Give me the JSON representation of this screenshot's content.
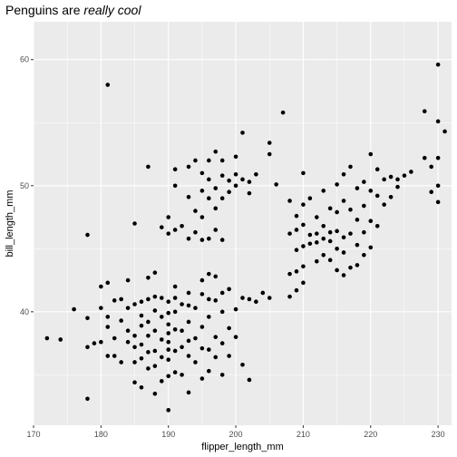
{
  "chart_data": {
    "type": "scatter",
    "title": "Penguins are ",
    "title_emphasis": "really cool",
    "xlabel": "flipper_length_mm",
    "ylabel": "bill_length_mm",
    "xlim": [
      170,
      232
    ],
    "ylim": [
      31,
      63
    ],
    "x_ticks": [
      170,
      180,
      190,
      200,
      210,
      220,
      230
    ],
    "x_tick_labels": [
      "170",
      "180",
      "190",
      "200",
      "210",
      "220",
      "230"
    ],
    "y_ticks": [
      40,
      50,
      60
    ],
    "y_tick_labels": [
      "40",
      "50",
      "60"
    ],
    "grid": true,
    "panel_color": "#ebebeb",
    "point_color": "#000000",
    "points": [
      [
        172,
        37.9
      ],
      [
        174,
        37.8
      ],
      [
        176,
        40.2
      ],
      [
        178,
        33.1
      ],
      [
        178,
        37.2
      ],
      [
        178,
        39.5
      ],
      [
        178,
        46.1
      ],
      [
        179,
        37.5
      ],
      [
        180,
        37.6
      ],
      [
        180,
        40.3
      ],
      [
        180,
        42.0
      ],
      [
        181,
        36.5
      ],
      [
        181,
        38.8
      ],
      [
        181,
        39.6
      ],
      [
        181,
        42.3
      ],
      [
        181,
        58.0
      ],
      [
        182,
        36.5
      ],
      [
        182,
        37.9
      ],
      [
        182,
        40.9
      ],
      [
        183,
        36.0
      ],
      [
        183,
        39.3
      ],
      [
        183,
        41.0
      ],
      [
        184,
        37.6
      ],
      [
        184,
        38.5
      ],
      [
        184,
        40.3
      ],
      [
        184,
        42.5
      ],
      [
        185,
        34.4
      ],
      [
        185,
        36.0
      ],
      [
        185,
        37.2
      ],
      [
        185,
        38.1
      ],
      [
        185,
        40.6
      ],
      [
        185,
        47.0
      ],
      [
        186,
        34.0
      ],
      [
        186,
        36.3
      ],
      [
        186,
        37.4
      ],
      [
        186,
        38.9
      ],
      [
        186,
        39.7
      ],
      [
        186,
        40.8
      ],
      [
        187,
        35.5
      ],
      [
        187,
        36.8
      ],
      [
        187,
        38.1
      ],
      [
        187,
        39.2
      ],
      [
        187,
        41.0
      ],
      [
        187,
        42.7
      ],
      [
        187,
        51.5
      ],
      [
        188,
        33.5
      ],
      [
        188,
        35.7
      ],
      [
        188,
        36.9
      ],
      [
        188,
        38.5
      ],
      [
        188,
        40.1
      ],
      [
        188,
        41.2
      ],
      [
        188,
        43.1
      ],
      [
        189,
        34.5
      ],
      [
        189,
        36.4
      ],
      [
        189,
        37.8
      ],
      [
        189,
        39.6
      ],
      [
        189,
        41.1
      ],
      [
        189,
        46.7
      ],
      [
        190,
        32.2
      ],
      [
        190,
        34.9
      ],
      [
        190,
        36.2
      ],
      [
        190,
        37.0
      ],
      [
        190,
        37.6
      ],
      [
        190,
        38.3
      ],
      [
        190,
        39.0
      ],
      [
        190,
        39.9
      ],
      [
        190,
        40.8
      ],
      [
        190,
        46.2
      ],
      [
        190,
        47.5
      ],
      [
        191,
        35.2
      ],
      [
        191,
        36.9
      ],
      [
        191,
        38.6
      ],
      [
        191,
        40.0
      ],
      [
        191,
        41.1
      ],
      [
        191,
        42.0
      ],
      [
        191,
        46.5
      ],
      [
        191,
        50.0
      ],
      [
        191,
        51.3
      ],
      [
        192,
        35.0
      ],
      [
        192,
        37.2
      ],
      [
        192,
        38.5
      ],
      [
        192,
        40.6
      ],
      [
        192,
        46.8
      ],
      [
        193,
        33.6
      ],
      [
        193,
        36.5
      ],
      [
        193,
        37.7
      ],
      [
        193,
        39.2
      ],
      [
        193,
        40.5
      ],
      [
        193,
        41.5
      ],
      [
        193,
        45.8
      ],
      [
        193,
        49.1
      ],
      [
        193,
        51.5
      ],
      [
        194,
        36.0
      ],
      [
        194,
        37.9
      ],
      [
        194,
        40.3
      ],
      [
        194,
        46.3
      ],
      [
        194,
        48.0
      ],
      [
        194,
        52.0
      ],
      [
        195,
        34.7
      ],
      [
        195,
        37.1
      ],
      [
        195,
        38.8
      ],
      [
        195,
        41.4
      ],
      [
        195,
        42.5
      ],
      [
        195,
        45.7
      ],
      [
        195,
        47.5
      ],
      [
        195,
        49.6
      ],
      [
        195,
        51.0
      ],
      [
        196,
        35.3
      ],
      [
        196,
        37.0
      ],
      [
        196,
        39.6
      ],
      [
        196,
        41.0
      ],
      [
        196,
        43.0
      ],
      [
        196,
        45.8
      ],
      [
        196,
        49.0
      ],
      [
        196,
        50.5
      ],
      [
        196,
        52.0
      ],
      [
        197,
        36.4
      ],
      [
        197,
        38.0
      ],
      [
        197,
        40.9
      ],
      [
        197,
        42.8
      ],
      [
        197,
        46.5
      ],
      [
        197,
        48.2
      ],
      [
        197,
        49.8
      ],
      [
        197,
        52.7
      ],
      [
        198,
        35.0
      ],
      [
        198,
        37.5
      ],
      [
        198,
        40.0
      ],
      [
        198,
        41.5
      ],
      [
        198,
        45.7
      ],
      [
        198,
        49.0
      ],
      [
        198,
        50.8
      ],
      [
        198,
        52.0
      ],
      [
        199,
        36.5
      ],
      [
        199,
        38.7
      ],
      [
        199,
        41.8
      ],
      [
        199,
        49.5
      ],
      [
        199,
        50.4
      ],
      [
        200,
        38.0
      ],
      [
        200,
        40.2
      ],
      [
        200,
        50.0
      ],
      [
        200,
        50.9
      ],
      [
        200,
        52.3
      ],
      [
        201,
        35.8
      ],
      [
        201,
        41.1
      ],
      [
        201,
        50.5
      ],
      [
        201,
        54.2
      ],
      [
        202,
        34.6
      ],
      [
        202,
        41.0
      ],
      [
        202,
        49.4
      ],
      [
        202,
        50.3
      ],
      [
        203,
        40.8
      ],
      [
        203,
        50.9
      ],
      [
        204,
        41.5
      ],
      [
        205,
        41.1
      ],
      [
        205,
        52.5
      ],
      [
        205,
        53.4
      ],
      [
        206,
        50.1
      ],
      [
        207,
        55.8
      ],
      [
        208,
        41.2
      ],
      [
        208,
        43.0
      ],
      [
        208,
        46.2
      ],
      [
        208,
        48.8
      ],
      [
        209,
        41.7
      ],
      [
        209,
        43.2
      ],
      [
        209,
        44.9
      ],
      [
        209,
        46.5
      ],
      [
        209,
        47.6
      ],
      [
        210,
        42.3
      ],
      [
        210,
        43.6
      ],
      [
        210,
        45.2
      ],
      [
        210,
        46.9
      ],
      [
        210,
        48.5
      ],
      [
        210,
        51.0
      ],
      [
        211,
        45.4
      ],
      [
        211,
        46.1
      ],
      [
        211,
        49.0
      ],
      [
        212,
        44.0
      ],
      [
        212,
        45.5
      ],
      [
        212,
        46.2
      ],
      [
        212,
        47.5
      ],
      [
        213,
        44.5
      ],
      [
        213,
        45.8
      ],
      [
        213,
        46.8
      ],
      [
        213,
        49.6
      ],
      [
        214,
        44.1
      ],
      [
        214,
        45.6
      ],
      [
        214,
        46.3
      ],
      [
        214,
        48.2
      ],
      [
        215,
        43.3
      ],
      [
        215,
        45.0
      ],
      [
        215,
        46.4
      ],
      [
        215,
        47.9
      ],
      [
        215,
        50.1
      ],
      [
        216,
        42.9
      ],
      [
        216,
        44.7
      ],
      [
        216,
        45.9
      ],
      [
        216,
        48.8
      ],
      [
        216,
        50.9
      ],
      [
        217,
        43.5
      ],
      [
        217,
        46.2
      ],
      [
        217,
        48.1
      ],
      [
        217,
        51.5
      ],
      [
        218,
        43.7
      ],
      [
        218,
        45.3
      ],
      [
        218,
        47.3
      ],
      [
        218,
        49.8
      ],
      [
        219,
        44.5
      ],
      [
        219,
        46.3
      ],
      [
        219,
        48.4
      ],
      [
        219,
        50.3
      ],
      [
        220,
        45.1
      ],
      [
        220,
        47.2
      ],
      [
        220,
        49.6
      ],
      [
        220,
        52.5
      ],
      [
        221,
        46.8
      ],
      [
        221,
        49.2
      ],
      [
        221,
        51.3
      ],
      [
        222,
        48.5
      ],
      [
        222,
        50.5
      ],
      [
        223,
        49.1
      ],
      [
        223,
        50.7
      ],
      [
        224,
        49.9
      ],
      [
        224,
        50.5
      ],
      [
        225,
        50.8
      ],
      [
        226,
        51.1
      ],
      [
        228,
        52.2
      ],
      [
        228,
        55.9
      ],
      [
        229,
        49.5
      ],
      [
        229,
        51.5
      ],
      [
        230,
        48.7
      ],
      [
        230,
        50.0
      ],
      [
        230,
        52.2
      ],
      [
        230,
        55.1
      ],
      [
        230,
        59.6
      ],
      [
        231,
        54.3
      ]
    ]
  }
}
